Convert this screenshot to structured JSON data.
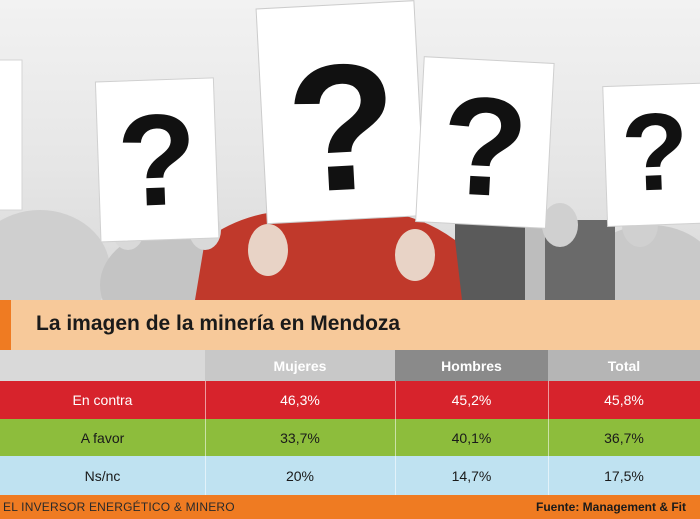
{
  "chart_data": {
    "type": "table",
    "title": "La imagen de la minería en Mendoza",
    "columns": [
      "Mujeres",
      "Hombres",
      "Total"
    ],
    "rows": [
      {
        "label": "En contra",
        "values": [
          "46,3%",
          "45,2%",
          "45,8%"
        ]
      },
      {
        "label": "A favor",
        "values": [
          "33,7%",
          "40,1%",
          "36,7%"
        ]
      },
      {
        "label": "Ns/nc",
        "values": [
          "20%",
          "14,7%",
          "17,5%"
        ]
      }
    ]
  },
  "footer": {
    "publication": "EL INVERSOR ENERGÉTICO & MINERO",
    "source": "Fuente: Management & Fit"
  },
  "photo": {
    "sign_glyph": "?"
  },
  "colors": {
    "accent_orange": "#ef7b22",
    "title_bg": "#f7c99a",
    "header_gray": "#d9d9d9",
    "header_dark": "#8a8a8a",
    "row_contra": "#d7232c",
    "row_favor": "#8dbd3c",
    "row_nsnc": "#bfe2f1"
  }
}
